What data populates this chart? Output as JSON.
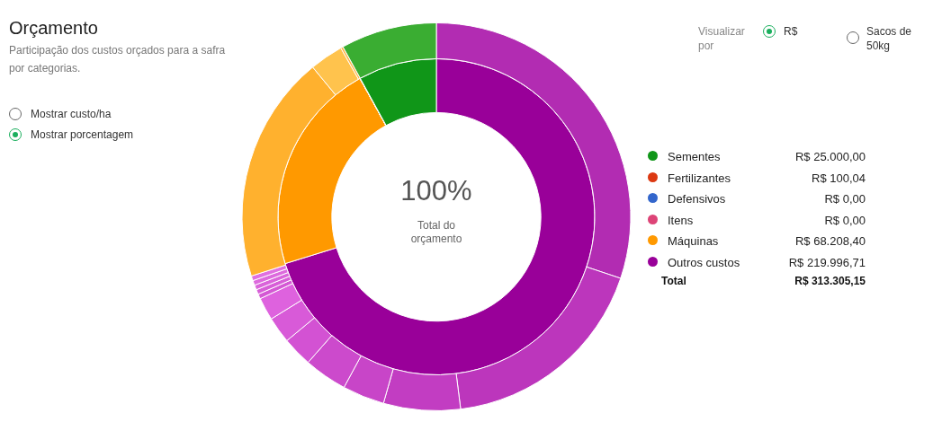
{
  "chart_data": [
    {
      "type": "donut",
      "title": "Orçamento",
      "subtitle": "Participação dos custos orçados para a safra por categorias.",
      "categories": [
        "Outros custos",
        "Máquinas",
        "Itens",
        "Defensivos",
        "Fertilizantes",
        "Sementes"
      ],
      "values": [
        219996.71,
        68208.4,
        0,
        0,
        100.04,
        25000.0
      ],
      "colors": [
        "#990099",
        "#ff9900",
        "#dd4477",
        "#3366cc",
        "#dc3912",
        "#109618"
      ],
      "value_labels": [
        "R$ 219.996,71",
        "R$ 68.208,40",
        "R$ 0,00",
        "R$ 0,00",
        "R$ 100,04",
        "R$ 25.000,00"
      ],
      "totals": [
        "R$ 313.305,15"
      ],
      "legend": "right",
      "annotations": [
        "100%",
        "Total do orçamento",
        "Visualizar por",
        "R$",
        "Sacos de 50kg",
        "Mostrar custo/ha",
        "Mostrar porcentagem",
        "Total"
      ]
    },
    {
      "type": "donut",
      "categories": [
        null,
        null,
        null,
        null,
        null,
        null,
        null,
        null,
        null,
        null,
        null,
        null,
        null,
        null,
        null,
        null,
        null
      ],
      "values": [
        30.2,
        17.9,
        6.4,
        3.5,
        3.6,
        2.5,
        2.2,
        1.9,
        0.4,
        0.4,
        0.4,
        0.4,
        0.4,
        19.0,
        2.8,
        0.2,
        8.0
      ],
      "colors": [
        "#b22cb2",
        "#bc36bc",
        "#c23dc2",
        "#c845c8",
        "#cc4acc",
        "#d352d3",
        "#d85ad8",
        "#de62de",
        "#d458d4",
        "#d75ed7",
        "#da64da",
        "#dd6add",
        "#e070e0",
        "#ffb12e",
        "#ffc34d",
        "#ffb84d",
        "#3aad32"
      ]
    }
  ]
}
